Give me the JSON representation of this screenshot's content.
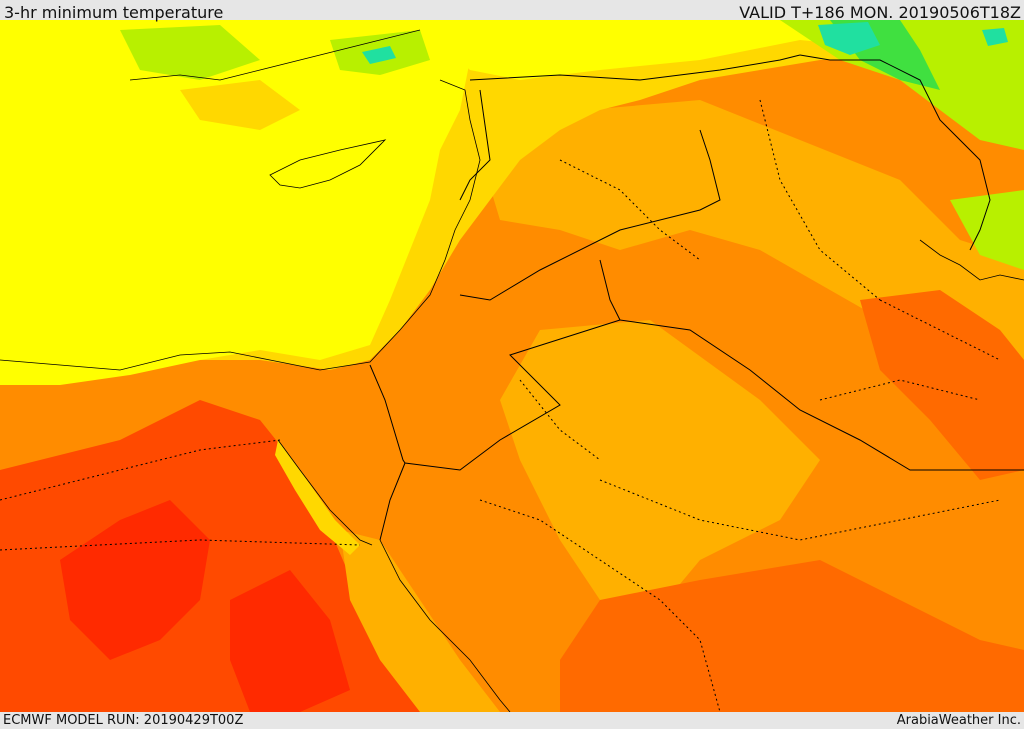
{
  "header": {
    "title": "3-hr minimum temperature",
    "valid": "VALID T+186 MON. 20190506T18Z"
  },
  "footer": {
    "model_run": "ECMWF MODEL RUN: 20190429T00Z",
    "credit": "ArabiaWeather Inc."
  },
  "colors": {
    "yellow": "#ffff00",
    "yellow_orange": "#ffd800",
    "light_orange": "#ffb000",
    "orange": "#ff8c00",
    "dark_orange": "#ff6a00",
    "red_orange": "#ff4a00",
    "red": "#ff2a00",
    "light_green": "#b8f000",
    "green": "#40e040",
    "teal": "#20e0a0"
  }
}
